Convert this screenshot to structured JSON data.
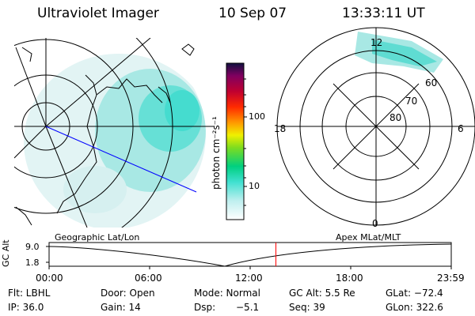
{
  "header": {
    "title": "Ultraviolet Imager",
    "date": "10 Sep 07",
    "time": "13:33:11 UT"
  },
  "colorbar": {
    "unit_label": "photon cm⁻²s⁻¹",
    "ticks": [
      "100",
      "10"
    ]
  },
  "polar": {
    "mlt_labels": {
      "top": "12",
      "left": "18",
      "right": "6",
      "bottom": "0"
    },
    "lat_labels": [
      "60",
      "70",
      "80"
    ]
  },
  "panels": {
    "geo_label": "Geographic Lat/Lon",
    "apex_label": "Apex MLat/MLT"
  },
  "timeline": {
    "axis_label": "GC Alt",
    "y_ticks": [
      "9.0",
      "1.8"
    ],
    "x_ticks": [
      "00:00",
      "06:00",
      "12:00",
      "18:00",
      "23:59"
    ],
    "current_time_fraction": 0.564
  },
  "status": {
    "flt": "Flt: LBHL",
    "door": "Door: Open",
    "mode": "Mode: Normal",
    "gc_alt": "GC Alt: 5.5 Re",
    "glat": "GLat: −72.4",
    "ip": "IP: 36.0",
    "gain": "Gain: 14",
    "dsp_label": "Dsp:",
    "dsp_value": "−5.1",
    "seq": "Seq: 39",
    "glon": "GLon: 322.6"
  },
  "colors": {
    "aurora": "#40e0d0",
    "track_line": "#0000ff",
    "time_marker": "#ff0000"
  }
}
